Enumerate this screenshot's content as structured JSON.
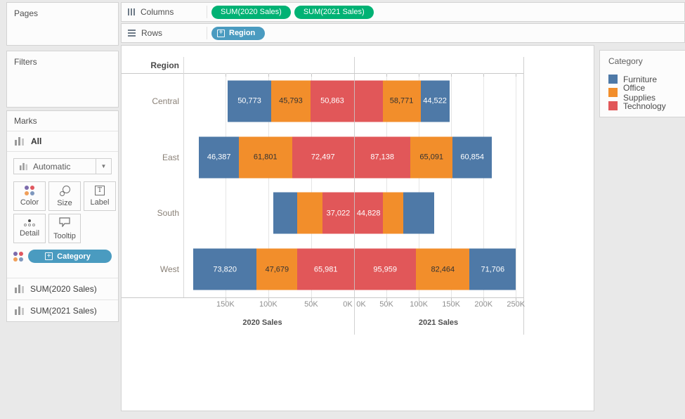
{
  "shelves": {
    "columns": {
      "label": "Columns",
      "pills": [
        {
          "text": "SUM(2020 Sales)"
        },
        {
          "text": "SUM(2021 Sales)"
        }
      ]
    },
    "rows": {
      "label": "Rows",
      "pills": [
        {
          "text": "Region",
          "expand_icon": "+"
        }
      ]
    }
  },
  "cards": {
    "pages": {
      "title": "Pages"
    },
    "filters": {
      "title": "Filters"
    },
    "marks": {
      "title": "Marks",
      "all_label": "All",
      "mark_type": "Automatic",
      "dropdown_arrow": "▼",
      "buttons": [
        {
          "label": "Color"
        },
        {
          "label": "Size"
        },
        {
          "label": "Label"
        },
        {
          "label": "Detail"
        },
        {
          "label": "Tooltip"
        }
      ],
      "color_pill": {
        "text": "Category",
        "expand_icon": "+"
      },
      "measure_rows": [
        {
          "text": "SUM(2020 Sales)"
        },
        {
          "text": "SUM(2021 Sales)"
        }
      ]
    }
  },
  "legend": {
    "title": "Category",
    "items": [
      {
        "label": "Furniture",
        "color": "#4e79a7"
      },
      {
        "label": "Office Supplies",
        "color": "#f28e2b"
      },
      {
        "label": "Technology",
        "color": "#e15759"
      }
    ]
  },
  "icon_colors": {
    "dot1": "#7c6bac",
    "dot2": "#e0575f",
    "dot3": "#f09f59",
    "dot4": "#7e97bd"
  },
  "chart_data": {
    "type": "bar",
    "subtype": "diverging-stacked-horizontal",
    "row_header": "Region",
    "categories": [
      "Central",
      "East",
      "South",
      "West"
    ],
    "series": [
      {
        "name": "Furniture",
        "color": "#4e79a7",
        "label_text_color": "#ffffff"
      },
      {
        "name": "Office Supplies",
        "color": "#f28e2b",
        "label_text_color": "#333333"
      },
      {
        "name": "Technology",
        "color": "#e15759",
        "label_text_color": "#ffffff"
      }
    ],
    "left_axis": {
      "title": "2020 Sales",
      "reversed": true,
      "range": [
        0,
        199000
      ],
      "ticks": [
        {
          "label": "150K",
          "value": 150000
        },
        {
          "label": "100K",
          "value": 100000
        },
        {
          "label": "50K",
          "value": 50000
        },
        {
          "label": "0K",
          "value": 0
        }
      ]
    },
    "right_axis": {
      "title": "2021 Sales",
      "range": [
        0,
        262000
      ],
      "ticks": [
        {
          "label": "0K",
          "value": 0
        },
        {
          "label": "50K",
          "value": 50000
        },
        {
          "label": "100K",
          "value": 100000
        },
        {
          "label": "150K",
          "value": 150000
        },
        {
          "label": "200K",
          "value": 200000
        },
        {
          "label": "250K",
          "value": 250000
        }
      ]
    },
    "rows": [
      {
        "region": "Central",
        "sales_2020": [
          {
            "category": "Furniture",
            "value": 50773,
            "label": "50,773"
          },
          {
            "category": "Office Supplies",
            "value": 45793,
            "label": "45,793"
          },
          {
            "category": "Technology",
            "value": 50863,
            "label": "50,863"
          }
        ],
        "sales_2021": [
          {
            "category": "Technology",
            "value": 44000,
            "label": "",
            "estimated": true
          },
          {
            "category": "Office Supplies",
            "value": 58771,
            "label": "58,771"
          },
          {
            "category": "Furniture",
            "value": 44522,
            "label": "44,522"
          }
        ]
      },
      {
        "region": "East",
        "sales_2020": [
          {
            "category": "Furniture",
            "value": 46387,
            "label": "46,387"
          },
          {
            "category": "Office Supplies",
            "value": 61801,
            "label": "61,801"
          },
          {
            "category": "Technology",
            "value": 72497,
            "label": "72,497"
          }
        ],
        "sales_2021": [
          {
            "category": "Technology",
            "value": 87138,
            "label": "87,138"
          },
          {
            "category": "Office Supplies",
            "value": 65091,
            "label": "65,091"
          },
          {
            "category": "Furniture",
            "value": 60854,
            "label": "60,854"
          }
        ]
      },
      {
        "region": "South",
        "sales_2020": [
          {
            "category": "Furniture",
            "value": 28500,
            "label": "",
            "estimated": true
          },
          {
            "category": "Office Supplies",
            "value": 29000,
            "label": "",
            "estimated": true
          },
          {
            "category": "Technology",
            "value": 37022,
            "label": "37,022"
          }
        ],
        "sales_2021": [
          {
            "category": "Technology",
            "value": 44828,
            "label": "44,828"
          },
          {
            "category": "Office Supplies",
            "value": 31500,
            "label": "",
            "estimated": true
          },
          {
            "category": "Furniture",
            "value": 47500,
            "label": "",
            "estimated": true
          }
        ]
      },
      {
        "region": "West",
        "sales_2020": [
          {
            "category": "Furniture",
            "value": 73820,
            "label": "73,820"
          },
          {
            "category": "Office Supplies",
            "value": 47679,
            "label": "47,679"
          },
          {
            "category": "Technology",
            "value": 65981,
            "label": "65,981"
          }
        ],
        "sales_2021": [
          {
            "category": "Technology",
            "value": 95959,
            "label": "95,959"
          },
          {
            "category": "Office Supplies",
            "value": 82464,
            "label": "82,464"
          },
          {
            "category": "Furniture",
            "value": 71706,
            "label": "71,706"
          }
        ]
      }
    ]
  }
}
